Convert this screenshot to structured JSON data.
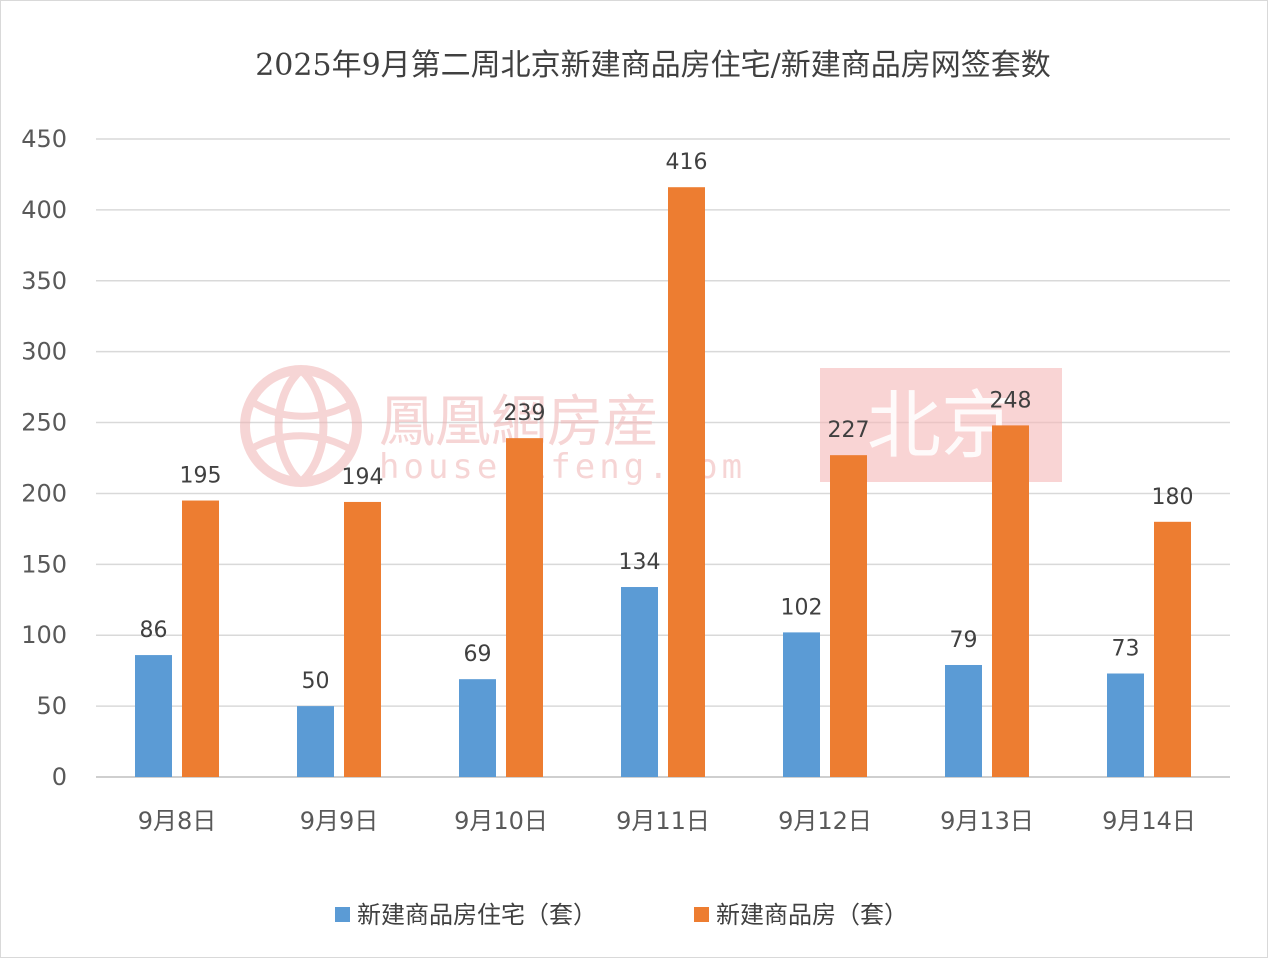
{
  "chart_data": {
    "type": "bar",
    "title": "2025年9月第二周北京新建商品房住宅/新建商品房网签套数",
    "categories": [
      "9月8日",
      "9月9日",
      "9月10日",
      "9月11日",
      "9月12日",
      "9月13日",
      "9月14日"
    ],
    "series": [
      {
        "name": "新建商品房住宅（套）",
        "values": [
          86,
          50,
          69,
          134,
          102,
          79,
          73
        ],
        "color": "#5b9bd5"
      },
      {
        "name": "新建商品房（套）",
        "values": [
          195,
          194,
          239,
          416,
          227,
          248,
          180
        ],
        "color": "#ed7d31"
      }
    ],
    "ylim": [
      0,
      450
    ],
    "yticks": [
      0,
      50,
      100,
      150,
      200,
      250,
      300,
      350,
      400,
      450
    ],
    "grid": true,
    "legend_position": "bottom",
    "data_labels": true
  },
  "watermark": {
    "brand_cn": "鳳凰網房産",
    "url": "house.ifeng.com",
    "city": "北京",
    "color": "#f5b7b7"
  }
}
